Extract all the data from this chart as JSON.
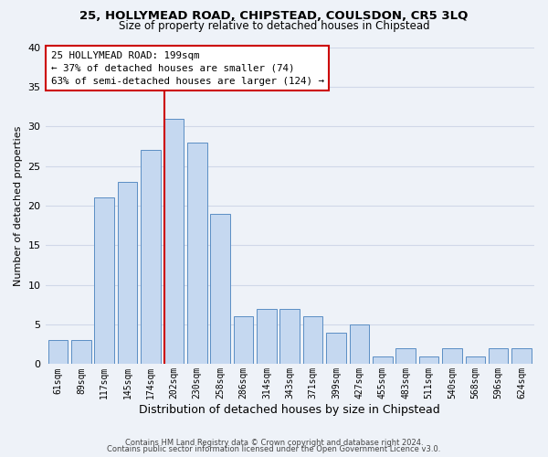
{
  "title1": "25, HOLLYMEAD ROAD, CHIPSTEAD, COULSDON, CR5 3LQ",
  "title2": "Size of property relative to detached houses in Chipstead",
  "xlabel": "Distribution of detached houses by size in Chipstead",
  "ylabel": "Number of detached properties",
  "bar_labels": [
    "61sqm",
    "89sqm",
    "117sqm",
    "145sqm",
    "174sqm",
    "202sqm",
    "230sqm",
    "258sqm",
    "286sqm",
    "314sqm",
    "343sqm",
    "371sqm",
    "399sqm",
    "427sqm",
    "455sqm",
    "483sqm",
    "511sqm",
    "540sqm",
    "568sqm",
    "596sqm",
    "624sqm"
  ],
  "bar_values": [
    3,
    3,
    21,
    23,
    27,
    31,
    28,
    19,
    6,
    7,
    7,
    6,
    4,
    5,
    1,
    2,
    1,
    2,
    1,
    2,
    2
  ],
  "bar_color": "#c5d8f0",
  "bar_edge_color": "#5b8ec4",
  "annotation_text_line1": "25 HOLLYMEAD ROAD: 199sqm",
  "annotation_text_line2": "← 37% of detached houses are smaller (74)",
  "annotation_text_line3": "63% of semi-detached houses are larger (124) →",
  "vline_color": "#cc0000",
  "vline_x_index": 5,
  "ylim": [
    0,
    40
  ],
  "yticks": [
    0,
    5,
    10,
    15,
    20,
    25,
    30,
    35,
    40
  ],
  "grid_color": "#d0d8e8",
  "background_color": "#eef2f8",
  "footnote1": "Contains HM Land Registry data © Crown copyright and database right 2024.",
  "footnote2": "Contains public sector information licensed under the Open Government Licence v3.0."
}
